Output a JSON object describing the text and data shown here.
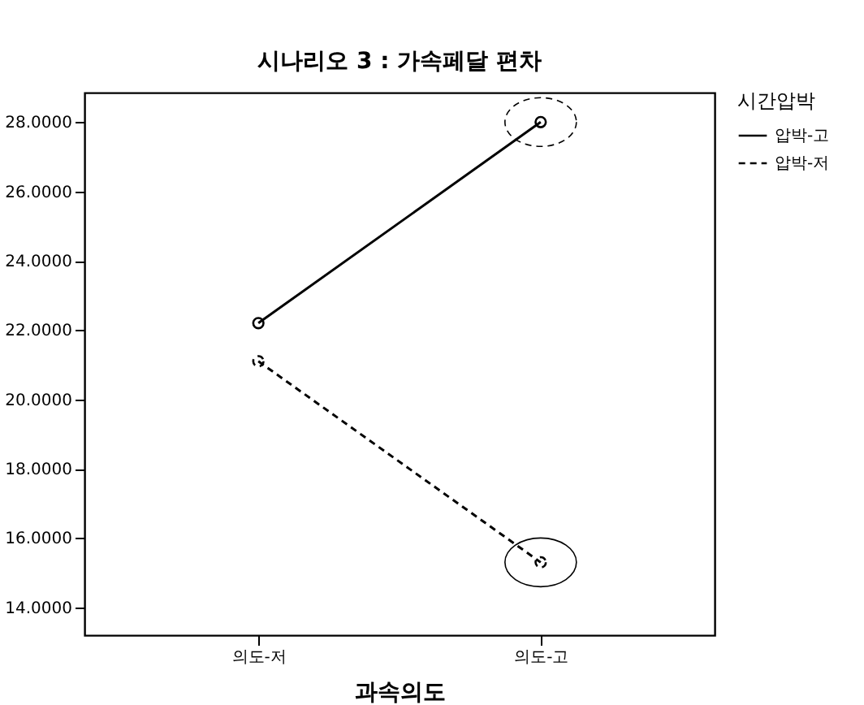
{
  "chart_data": {
    "type": "line",
    "title": "시나리오 3 : 가속페달 편차",
    "xlabel": "과속의도",
    "legend_title": "시간압박",
    "categories": [
      "의도-저",
      "의도-고"
    ],
    "series": [
      {
        "name": "압박-고",
        "color": "#000000",
        "line_style": "solid",
        "values": [
          22.2,
          28.0
        ]
      },
      {
        "name": "압박-저",
        "color": "#000000",
        "line_style": "dashed",
        "values": [
          21.1,
          15.3
        ]
      }
    ],
    "ylim": [
      13.2,
      28.85
    ],
    "yticks": [
      {
        "value": 14,
        "label": "14.0000"
      },
      {
        "value": 16,
        "label": "16.0000"
      },
      {
        "value": 18,
        "label": "18.0000"
      },
      {
        "value": 20,
        "label": "20.0000"
      },
      {
        "value": 22,
        "label": "22.0000"
      },
      {
        "value": 24,
        "label": "24.0000"
      },
      {
        "value": 26,
        "label": "26.0000"
      },
      {
        "value": 28,
        "label": "28.0000"
      }
    ],
    "marker": "circle",
    "legend": "right",
    "grid": false
  }
}
